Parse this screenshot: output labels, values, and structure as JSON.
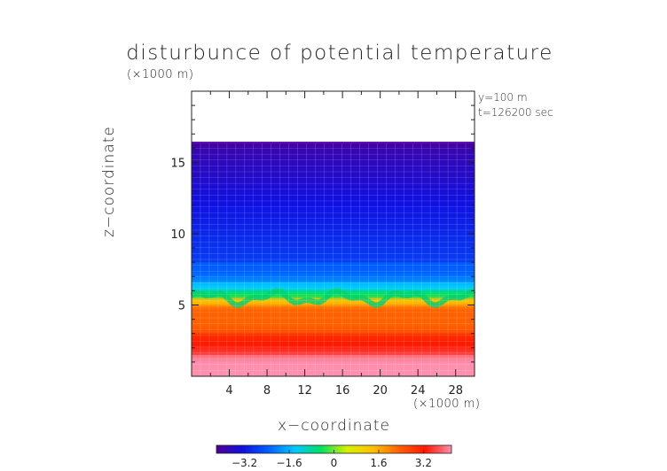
{
  "chart_data": {
    "type": "heatmap",
    "title": "disturbunce of potential temperature",
    "xlabel": "x−coordinate",
    "ylabel": "z−coordinate",
    "x_unit": "(×1000 m)",
    "y_unit": "(×1000 m)",
    "annotations": [
      "y=100 m",
      "t=126200 sec"
    ],
    "xlim": [
      0,
      30
    ],
    "ylim": [
      0,
      20
    ],
    "x_ticks": [
      4,
      8,
      12,
      16,
      20,
      24,
      28
    ],
    "x_tick_labels": [
      "4",
      "8",
      "12",
      "16",
      "20",
      "24",
      "28"
    ],
    "y_ticks": [
      5,
      10,
      15
    ],
    "y_tick_labels": [
      "5",
      "10",
      "15"
    ],
    "data_top": 16.4,
    "layers": [
      {
        "z_from": 0.0,
        "z_to": 0.3,
        "value": 4.2
      },
      {
        "z_from": 0.3,
        "z_to": 1.5,
        "value": 3.6
      },
      {
        "z_from": 1.5,
        "z_to": 3.0,
        "value": 3.0
      },
      {
        "z_from": 3.0,
        "z_to": 4.2,
        "value": 2.4
      },
      {
        "z_from": 4.2,
        "z_to": 5.0,
        "value": 1.8
      },
      {
        "z_from": 5.0,
        "z_to": 5.5,
        "value": 0.9
      },
      {
        "z_from": 5.5,
        "z_to": 6.0,
        "value": -0.4
      },
      {
        "z_from": 6.0,
        "z_to": 6.6,
        "value": -1.2
      },
      {
        "z_from": 6.6,
        "z_to": 8.0,
        "value": -2.0
      },
      {
        "z_from": 8.0,
        "z_to": 16.4,
        "value": -2.8
      },
      {
        "z_from": 16.0,
        "z_to": 16.4,
        "value": -3.4
      }
    ],
    "colorbar": {
      "range": [
        -4.2,
        4.2
      ],
      "ticks": [
        -3.2,
        -1.6,
        0,
        1.6,
        3.2
      ],
      "tick_labels": [
        "−3.2",
        "−1.6",
        "0",
        "1.6",
        "3.2"
      ],
      "colors": [
        "#500090",
        "#1010e0",
        "#0060ff",
        "#00c8ff",
        "#00e060",
        "#d8f000",
        "#ffc000",
        "#ff6000",
        "#ff1800",
        "#ff90b0"
      ]
    }
  }
}
